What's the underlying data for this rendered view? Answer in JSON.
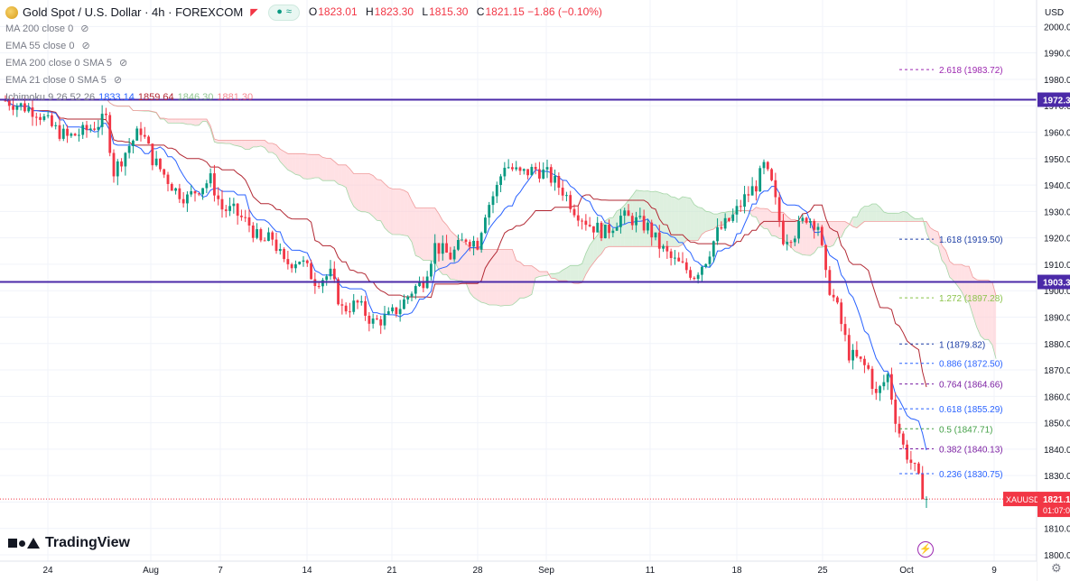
{
  "header": {
    "symbol_title": "Gold Spot / U.S. Dollar · 4h · FOREXCOM",
    "ohlc": [
      {
        "k": "O",
        "v": "1823.01"
      },
      {
        "k": "H",
        "v": "1823.30"
      },
      {
        "k": "L",
        "v": "1815.30"
      },
      {
        "k": "C",
        "v": "1821.15 −1.86 (−0.10%)"
      }
    ],
    "indicators": [
      "MA 200 close 0",
      "EMA 55 close 0",
      "EMA 200 close 0 SMA 5",
      "EMA 21 close 0 SMA 5"
    ],
    "ichimoku": {
      "label": "Ichimoku 9 26 52 26",
      "values": [
        "1833.14",
        "1859.64",
        "1846.30",
        "1881.30"
      ]
    }
  },
  "price_axis": {
    "currency": "USD",
    "labels": [
      "2000.0",
      "1990.0",
      "1980.0",
      "1970.0",
      "1960.0",
      "1950.0",
      "1940.0",
      "1930.0",
      "1920.0",
      "1910.0",
      "1900.0",
      "1890.0",
      "1880.0",
      "1870.0",
      "1860.0",
      "1850.0",
      "1840.0",
      "1830.0",
      "1820.0",
      "1810.0",
      "1800.0"
    ]
  },
  "time_axis": {
    "labels": [
      {
        "t": "24",
        "x": 53
      },
      {
        "t": "Aug",
        "x": 167
      },
      {
        "t": "7",
        "x": 244
      },
      {
        "t": "14",
        "x": 340
      },
      {
        "t": "21",
        "x": 434
      },
      {
        "t": "28",
        "x": 529
      },
      {
        "t": "Sep",
        "x": 605
      },
      {
        "t": "11",
        "x": 720
      },
      {
        "t": "18",
        "x": 816
      },
      {
        "t": "25",
        "x": 911
      },
      {
        "t": "Oct",
        "x": 1004
      },
      {
        "t": "9",
        "x": 1101
      }
    ]
  },
  "chart_data": {
    "type": "candlestick",
    "title": "Gold Spot / U.S. Dollar · 4h · FOREXCOM",
    "ylim": [
      1800,
      2000
    ],
    "grid": true,
    "horizontal_lines": [
      {
        "price": 1972.3,
        "label": "1972.3",
        "color": "#4b2aa8"
      },
      {
        "price": 1903.3,
        "label": "1903.3",
        "color": "#4b2aa8"
      }
    ],
    "fibonacci": [
      {
        "level": "2.618",
        "price": 1983.72,
        "color": "#9c27b0"
      },
      {
        "level": "1.618",
        "price": 1919.5,
        "color": "#1e3fa6"
      },
      {
        "level": "1.272",
        "price": 1897.28,
        "color": "#8bc34a"
      },
      {
        "level": "1",
        "price": 1879.82,
        "color": "#1e3fa6"
      },
      {
        "level": "0.886",
        "price": 1872.5,
        "color": "#2962ff"
      },
      {
        "level": "0.764",
        "price": 1864.66,
        "color": "#7b1fa2"
      },
      {
        "level": "0.618",
        "price": 1855.29,
        "color": "#2962ff"
      },
      {
        "level": "0.5",
        "price": 1847.71,
        "color": "#43a047"
      },
      {
        "level": "0.382",
        "price": 1840.13,
        "color": "#7b1fa2"
      },
      {
        "level": "0.236",
        "price": 1830.75,
        "color": "#2962ff"
      }
    ],
    "last_price": {
      "symbol": "XAUUSD",
      "price": "1821.1",
      "countdown": "01:07:0",
      "value": 1821.15
    },
    "colors": {
      "up": "#089981",
      "down": "#f23645",
      "conversion": "#2962ff",
      "base": "#b22833",
      "cloud_bull": "#c8e6c9",
      "cloud_bear": "#ffcdd2"
    },
    "price_path": [
      [
        0,
        1972
      ],
      [
        8,
        1968
      ],
      [
        12,
        1962
      ],
      [
        16,
        1958
      ],
      [
        20,
        1960
      ],
      [
        26,
        1965
      ],
      [
        28,
        1945
      ],
      [
        32,
        1955
      ],
      [
        35,
        1961
      ],
      [
        38,
        1950
      ],
      [
        44,
        1938
      ],
      [
        47,
        1935
      ],
      [
        50,
        1939
      ],
      [
        53,
        1942
      ],
      [
        56,
        1931
      ],
      [
        59,
        1930
      ],
      [
        63,
        1925
      ],
      [
        66,
        1918
      ],
      [
        69,
        1920
      ],
      [
        72,
        1910
      ],
      [
        76,
        1912
      ],
      [
        80,
        1904
      ],
      [
        84,
        1906
      ],
      [
        87,
        1893
      ],
      [
        91,
        1895
      ],
      [
        95,
        1888
      ],
      [
        99,
        1890
      ],
      [
        102,
        1894
      ],
      [
        105,
        1900
      ],
      [
        108,
        1904
      ],
      [
        111,
        1917
      ],
      [
        115,
        1913
      ],
      [
        119,
        1920
      ],
      [
        122,
        1918
      ],
      [
        124,
        1930
      ],
      [
        127,
        1939
      ],
      [
        129,
        1948
      ],
      [
        133,
        1944
      ],
      [
        137,
        1946
      ],
      [
        140,
        1944
      ],
      [
        144,
        1938
      ],
      [
        147,
        1931
      ],
      [
        151,
        1925
      ],
      [
        155,
        1922
      ],
      [
        159,
        1928
      ],
      [
        162,
        1927
      ],
      [
        166,
        1924
      ],
      [
        169,
        1917
      ],
      [
        172,
        1912
      ],
      [
        175,
        1909
      ],
      [
        178,
        1906
      ],
      [
        181,
        1912
      ],
      [
        184,
        1922
      ],
      [
        188,
        1928
      ],
      [
        191,
        1935
      ],
      [
        194,
        1940
      ],
      [
        196,
        1947
      ],
      [
        198,
        1940
      ],
      [
        201,
        1920
      ],
      [
        204,
        1922
      ],
      [
        207,
        1928
      ],
      [
        210,
        1925
      ],
      [
        212,
        1905
      ],
      [
        215,
        1893
      ],
      [
        218,
        1876
      ],
      [
        220,
        1874
      ],
      [
        223,
        1870
      ],
      [
        225,
        1860
      ],
      [
        228,
        1868
      ],
      [
        230,
        1852
      ],
      [
        232,
        1841
      ],
      [
        235,
        1832
      ],
      [
        237,
        1824
      ],
      [
        238,
        1821
      ]
    ],
    "candle_count": 238
  }
}
